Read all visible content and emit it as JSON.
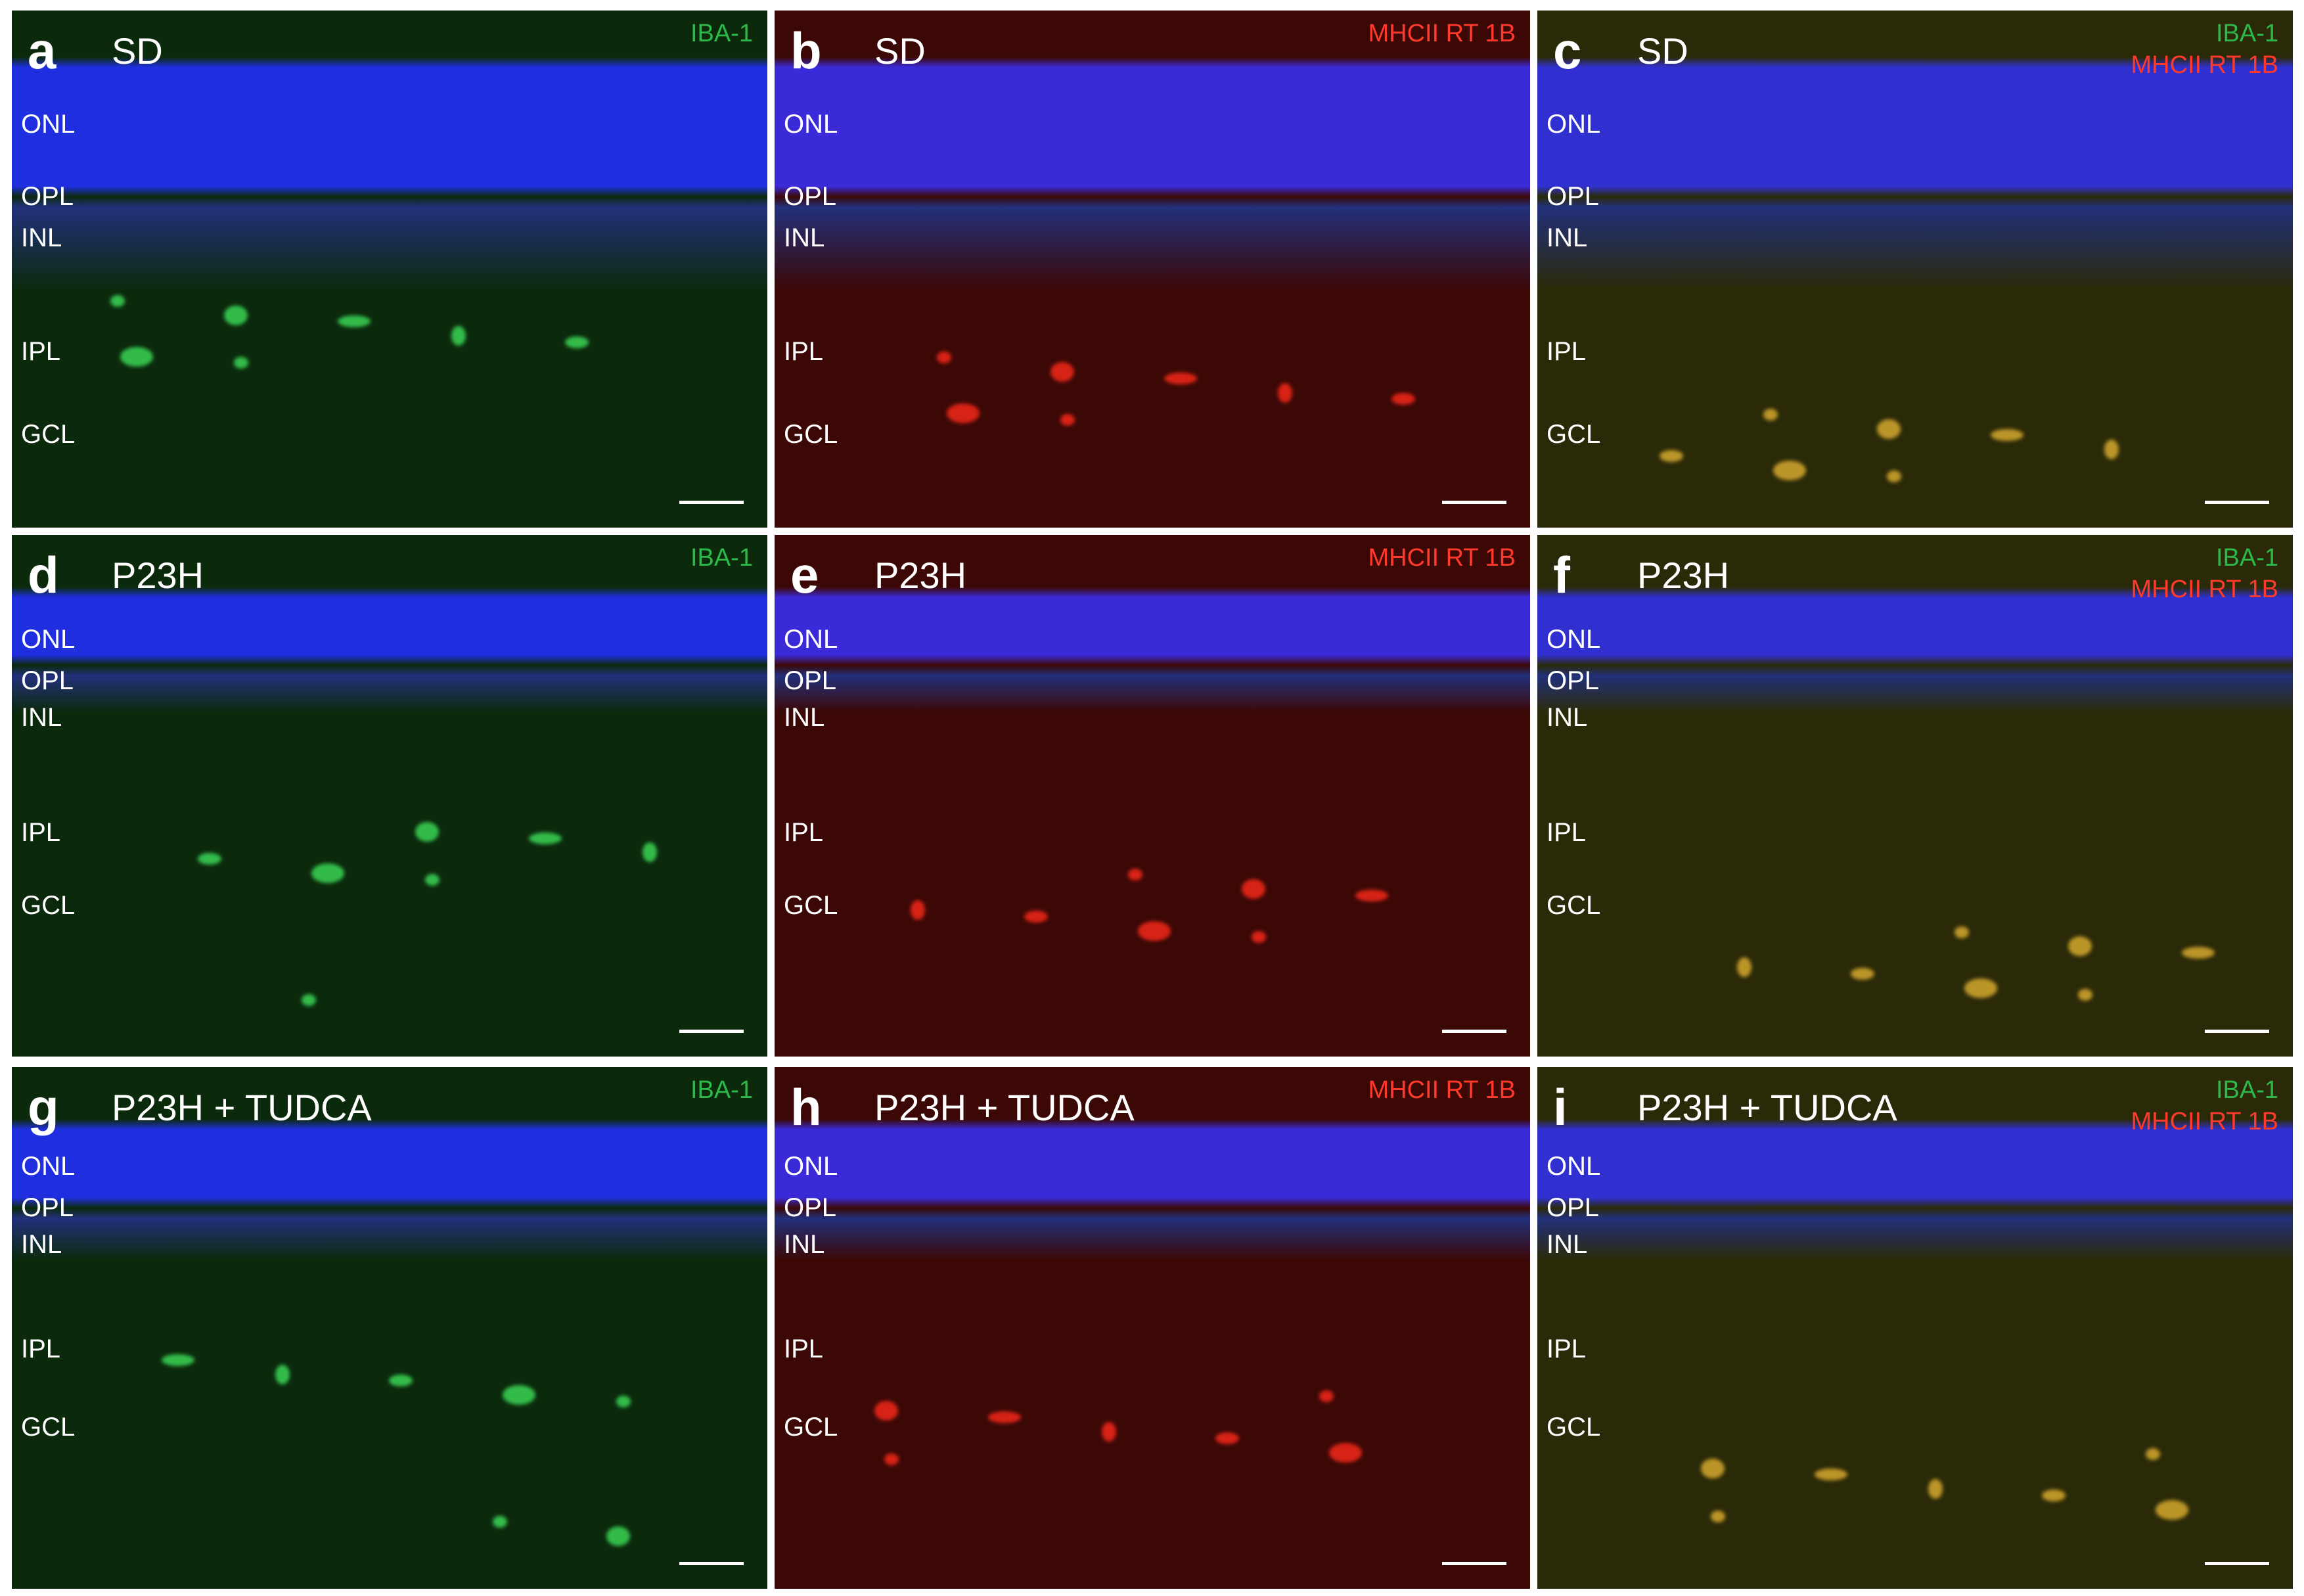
{
  "panels": [
    {
      "letter": "a",
      "condition": "SD",
      "markers": [
        "IBA-1"
      ],
      "layers": [
        "ONL",
        "OPL",
        "INL",
        "IPL",
        "GCL"
      ]
    },
    {
      "letter": "b",
      "condition": "SD",
      "markers": [
        "MHCII RT 1B"
      ],
      "layers": [
        "ONL",
        "OPL",
        "INL",
        "IPL",
        "GCL"
      ]
    },
    {
      "letter": "c",
      "condition": "SD",
      "markers": [
        "IBA-1",
        "MHCII RT 1B"
      ],
      "layers": [
        "ONL",
        "OPL",
        "INL",
        "IPL",
        "GCL"
      ]
    },
    {
      "letter": "d",
      "condition": "P23H",
      "markers": [
        "IBA-1"
      ],
      "layers": [
        "ONL",
        "OPL",
        "INL",
        "IPL",
        "GCL"
      ]
    },
    {
      "letter": "e",
      "condition": "P23H",
      "markers": [
        "MHCII RT 1B"
      ],
      "layers": [
        "ONL",
        "OPL",
        "INL",
        "IPL",
        "GCL"
      ]
    },
    {
      "letter": "f",
      "condition": "P23H",
      "markers": [
        "IBA-1",
        "MHCII RT 1B"
      ],
      "layers": [
        "ONL",
        "OPL",
        "INL",
        "IPL",
        "GCL"
      ]
    },
    {
      "letter": "g",
      "condition": "P23H + TUDCA",
      "markers": [
        "IBA-1"
      ],
      "layers": [
        "ONL",
        "OPL",
        "INL",
        "IPL",
        "GCL"
      ]
    },
    {
      "letter": "h",
      "condition": "P23H + TUDCA",
      "markers": [
        "MHCII RT 1B"
      ],
      "layers": [
        "ONL",
        "OPL",
        "INL",
        "IPL",
        "GCL"
      ]
    },
    {
      "letter": "i",
      "condition": "P23H + TUDCA",
      "markers": [
        "IBA-1",
        "MHCII RT 1B"
      ],
      "layers": [
        "ONL",
        "OPL",
        "INL",
        "IPL",
        "GCL"
      ]
    }
  ]
}
